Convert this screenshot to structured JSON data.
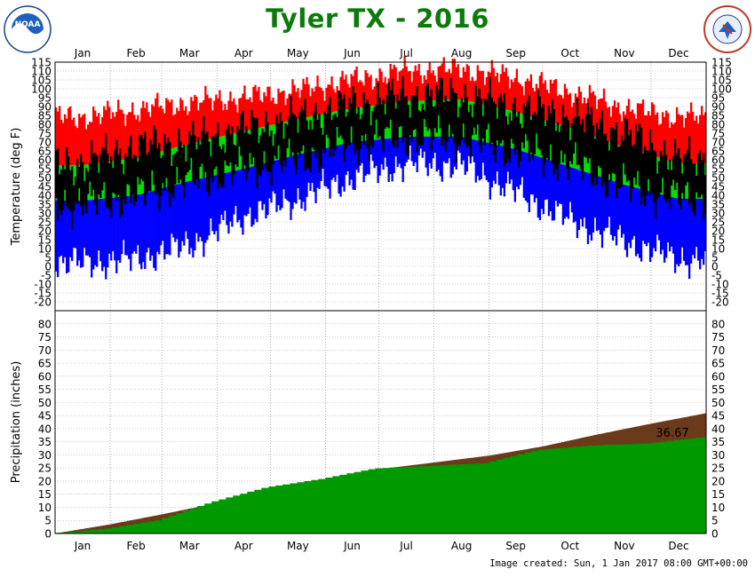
{
  "header": {
    "title": "Tyler TX - 2016",
    "left_logo": {
      "icon": "noaa-logo",
      "text": "NOAA"
    },
    "right_logo": {
      "icon": "national-weather-service-logo",
      "text": "NATIONAL WEATHER SERVICE"
    }
  },
  "footer": {
    "created": "Image created: Sun, 1 Jan 2017 08:00 GMT+00:00"
  },
  "colors": {
    "record_high": "#ff0000",
    "record_low": "#0000ff",
    "normal_range": "#00dd00",
    "observed": "#000000",
    "normal_precip": "#6b3a1a",
    "observed_precip": "#009900",
    "title": "#0b7a0b"
  },
  "chart_data": [
    {
      "type": "area",
      "panel": "temperature",
      "ylabel": "Temperature (deg F)",
      "ylim": [
        -25,
        115
      ],
      "yticks": [
        -20,
        -15,
        -10,
        -5,
        0,
        5,
        10,
        15,
        20,
        25,
        30,
        35,
        40,
        45,
        50,
        55,
        60,
        65,
        70,
        75,
        80,
        85,
        90,
        95,
        100,
        105,
        110,
        115
      ],
      "month_labels": [
        "Jan",
        "Feb",
        "Mar",
        "Apr",
        "May",
        "Jun",
        "Jul",
        "Aug",
        "Sep",
        "Oct",
        "Nov",
        "Dec"
      ],
      "grid": true,
      "series": [
        {
          "key": "record_high",
          "monthly": [
            84,
            88,
            92,
            95,
            99,
            105,
            110,
            111,
            106,
            98,
            89,
            84
          ]
        },
        {
          "key": "normal_high",
          "monthly": [
            57,
            61,
            69,
            76,
            83,
            89,
            93,
            94,
            87,
            78,
            67,
            58
          ]
        },
        {
          "key": "normal_low",
          "monthly": [
            37,
            40,
            48,
            55,
            63,
            70,
            73,
            73,
            66,
            56,
            46,
            38
          ]
        },
        {
          "key": "record_low",
          "monthly": [
            2,
            4,
            12,
            28,
            38,
            50,
            58,
            57,
            42,
            26,
            14,
            4
          ]
        },
        {
          "key": "observed_high",
          "monthly": [
            58,
            67,
            70,
            77,
            83,
            91,
            96,
            96,
            89,
            84,
            75,
            60
          ]
        },
        {
          "key": "observed_low",
          "monthly": [
            37,
            42,
            50,
            57,
            62,
            71,
            75,
            74,
            67,
            60,
            47,
            40
          ]
        }
      ]
    },
    {
      "type": "area",
      "panel": "precipitation",
      "ylabel": "Precipitation (inches)",
      "ylim": [
        0,
        85
      ],
      "yticks": [
        0,
        5,
        10,
        15,
        20,
        25,
        30,
        35,
        40,
        45,
        50,
        55,
        60,
        65,
        70,
        75,
        80
      ],
      "month_labels": [
        "Jan",
        "Feb",
        "Mar",
        "Apr",
        "May",
        "Jun",
        "Jul",
        "Aug",
        "Sep",
        "Oct",
        "Nov",
        "Dec"
      ],
      "grid": true,
      "annotation": "36.67",
      "series": [
        {
          "key": "normal_cumulative",
          "end_of_month": [
            3.5,
            7.3,
            11.6,
            15.3,
            20.3,
            24.5,
            27.1,
            29.7,
            33.2,
            37.8,
            41.9,
            45.9
          ]
        },
        {
          "key": "observed_cumulative",
          "end_of_month": [
            1.8,
            5.0,
            12.1,
            17.6,
            20.8,
            24.8,
            25.8,
            26.8,
            31.9,
            33.6,
            34.3,
            36.67
          ]
        }
      ]
    }
  ]
}
